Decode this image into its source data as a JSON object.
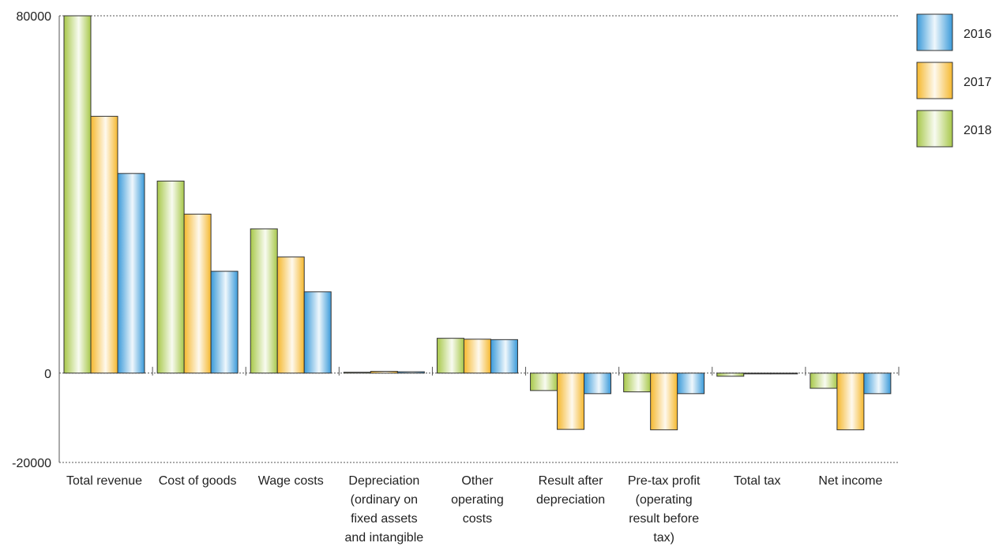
{
  "chart_data": {
    "type": "bar",
    "title": "",
    "xlabel": "",
    "ylabel": "",
    "ylim": [
      -20000,
      80000
    ],
    "yticks": [
      80000,
      0,
      -20000
    ],
    "grid": "dotted lines at top and bottom of axis",
    "legend": "top-right",
    "categories": [
      "Total revenue",
      "Cost of goods",
      "Wage costs",
      "Depreciation (ordinary on fixed assets and intangible",
      "Other operating costs",
      "Result after depreciation",
      "Pre-tax profit (operating result before tax)",
      "Total tax",
      "Net income"
    ],
    "category_label_lines": [
      [
        "Total revenue"
      ],
      [
        "Cost of goods"
      ],
      [
        "Wage costs"
      ],
      [
        "Depreciation",
        "(ordinary on",
        "fixed assets",
        "and intangible"
      ],
      [
        "Other",
        "operating",
        "costs"
      ],
      [
        "Result after",
        "depreciation"
      ],
      [
        "Pre-tax profit",
        "(operating",
        "result before",
        "tax)"
      ],
      [
        "Total tax"
      ],
      [
        "Net income"
      ]
    ],
    "series": [
      {
        "name": "2018",
        "color": "#a8c84a",
        "values": [
          80000,
          43000,
          32300,
          200,
          7800,
          -3900,
          -4200,
          -700,
          -3400
        ]
      },
      {
        "name": "2017",
        "color": "#f5b82e",
        "values": [
          57500,
          35600,
          26000,
          400,
          7600,
          -12600,
          -12700,
          -100,
          -12700
        ]
      },
      {
        "name": "2016",
        "color": "#3a9ad9",
        "values": [
          44700,
          22800,
          18200,
          300,
          7500,
          -4600,
          -4600,
          -100,
          -4600
        ]
      }
    ],
    "legend_order": [
      "2016",
      "2017",
      "2018"
    ]
  }
}
